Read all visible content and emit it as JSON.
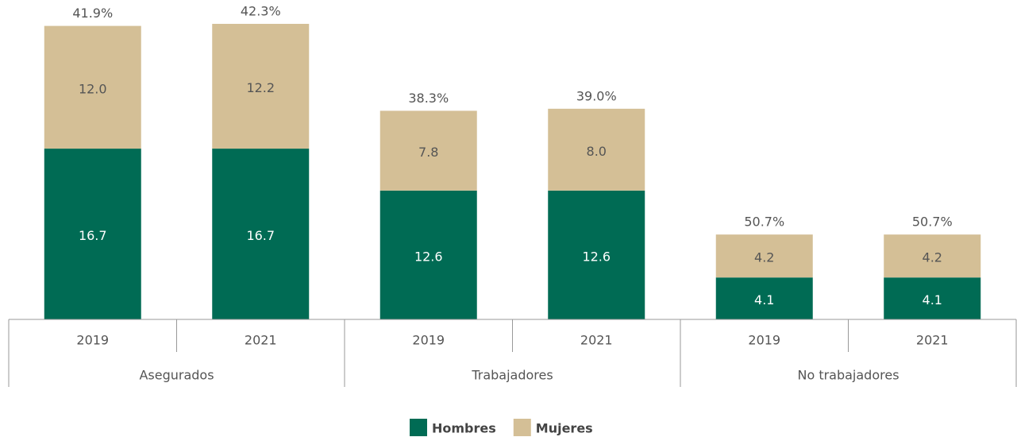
{
  "chart_data": {
    "type": "stacked_bar",
    "categories": [
      "2019",
      "2021",
      "2019",
      "2021",
      "2019",
      "2021"
    ],
    "groups": [
      "Asegurados",
      "Trabajadores",
      "No trabajadores"
    ],
    "series": [
      {
        "name": "Hombres",
        "color": "#006b54",
        "label_color": "#ffffff",
        "values": [
          16.7,
          16.7,
          12.6,
          12.6,
          4.1,
          4.1
        ],
        "value_labels": [
          "16.7",
          "16.7",
          "12.6",
          "12.6",
          "4.1",
          "4.1"
        ]
      },
      {
        "name": "Mujeres",
        "color": "#d4bf96",
        "label_color": "#555555",
        "values": [
          12.0,
          12.2,
          7.8,
          8.0,
          4.2,
          4.2
        ],
        "value_labels": [
          "12.0",
          "12.2",
          "7.8",
          "8.0",
          "4.2",
          "4.2"
        ]
      }
    ],
    "top_labels": [
      {
        "value": 41.9,
        "label": "41.9%"
      },
      {
        "value": 42.3,
        "label": "42.3%"
      },
      {
        "value": 38.3,
        "label": "38.3%"
      },
      {
        "value": 39.0,
        "label": "39.0%"
      },
      {
        "value": 50.7,
        "label": "50.7%"
      },
      {
        "value": 50.7,
        "label": "50.7%"
      }
    ],
    "ylim": [
      0,
      31
    ],
    "legend": "bottom"
  }
}
